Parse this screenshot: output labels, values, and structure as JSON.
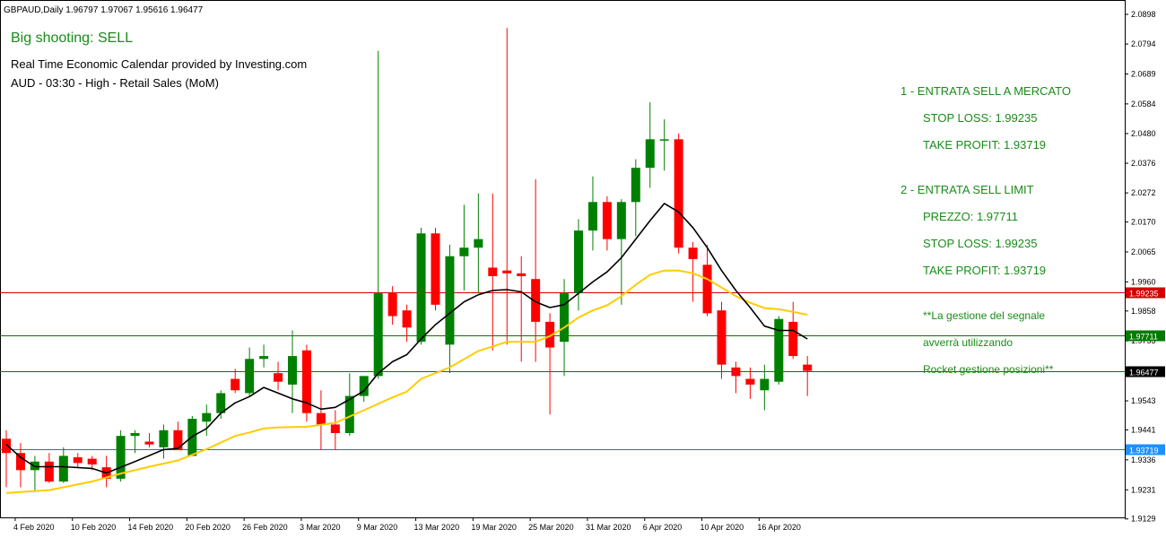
{
  "header": {
    "symbol_info": "GBPAUD,Daily  1.96797 1.97067 1.95616 1.96477",
    "signal_title": "Big shooting: SELL",
    "calendar_line1": "Real Time Economic Calendar provided by Investing.com",
    "calendar_line2": "AUD - 03:30 - High - Retail Sales (MoM)"
  },
  "notes": {
    "entry1": "1 - ENTRATA SELL A MERCATO",
    "sl1": "STOP LOSS: 1.99235",
    "tp1": "TAKE PROFIT: 1.93719",
    "entry2": "2 - ENTRATA SELL LIMIT",
    "price2": "PREZZO: 1.97711",
    "sl2": "STOP LOSS: 1.99235",
    "tp2": "TAKE PROFIT: 1.93719",
    "mgmt1": "**La gestione del segnale",
    "mgmt2": "avverrà utilizzando",
    "mgmt3": "Rocket gestione posizioni**"
  },
  "colors": {
    "bull": "#008000",
    "bear": "#ff0000",
    "fast_ma": "#000000",
    "slow_ma": "#ffcc00",
    "stop_line": "#d40000",
    "entry_line": "#007a00",
    "target_line": "#008b8b",
    "current_label_bg": "#000000",
    "target_label_bg": "#1e90ff"
  },
  "chart_data": {
    "type": "candlestick",
    "symbol": "GBPAUD",
    "timeframe": "Daily",
    "ylim": [
      1.9123,
      2.0917
    ],
    "y_ticks": [
      2.0898,
      2.0794,
      2.0689,
      2.0584,
      2.048,
      2.0376,
      2.0272,
      2.017,
      2.0065,
      1.996,
      1.9858,
      1.9753,
      1.9648,
      1.9543,
      1.9441,
      1.9336,
      1.9231,
      1.9129
    ],
    "x_ticks": [
      {
        "label": "4 Feb 2020",
        "index": 1
      },
      {
        "label": "10 Feb 2020",
        "index": 5
      },
      {
        "label": "14 Feb 2020",
        "index": 9
      },
      {
        "label": "20 Feb 2020",
        "index": 13
      },
      {
        "label": "26 Feb 2020",
        "index": 17
      },
      {
        "label": "3 Mar 2020",
        "index": 21
      },
      {
        "label": "9 Mar 2020",
        "index": 25
      },
      {
        "label": "13 Mar 2020",
        "index": 29
      },
      {
        "label": "19 Mar 2020",
        "index": 33
      },
      {
        "label": "25 Mar 2020",
        "index": 37
      },
      {
        "label": "31 Mar 2020",
        "index": 41
      },
      {
        "label": "6 Apr 2020",
        "index": 45
      },
      {
        "label": "10 Apr 2020",
        "index": 49
      },
      {
        "label": "16 Apr 2020",
        "index": 53
      }
    ],
    "candles": [
      {
        "o": 1.941,
        "h": 1.944,
        "l": 1.924,
        "c": 1.936
      },
      {
        "o": 1.936,
        "h": 1.9395,
        "l": 1.924,
        "c": 1.93
      },
      {
        "o": 1.93,
        "h": 1.935,
        "l": 1.9225,
        "c": 1.933
      },
      {
        "o": 1.933,
        "h": 1.936,
        "l": 1.9255,
        "c": 1.926
      },
      {
        "o": 1.926,
        "h": 1.938,
        "l": 1.9255,
        "c": 1.935
      },
      {
        "o": 1.9345,
        "h": 1.936,
        "l": 1.931,
        "c": 1.9325
      },
      {
        "o": 1.934,
        "h": 1.935,
        "l": 1.93,
        "c": 1.932
      },
      {
        "o": 1.931,
        "h": 1.935,
        "l": 1.924,
        "c": 1.927
      },
      {
        "o": 1.927,
        "h": 1.944,
        "l": 1.926,
        "c": 1.942
      },
      {
        "o": 1.942,
        "h": 1.944,
        "l": 1.936,
        "c": 1.943
      },
      {
        "o": 1.94,
        "h": 1.943,
        "l": 1.938,
        "c": 1.939
      },
      {
        "o": 1.938,
        "h": 1.946,
        "l": 1.934,
        "c": 1.944
      },
      {
        "o": 1.944,
        "h": 1.947,
        "l": 1.937,
        "c": 1.937
      },
      {
        "o": 1.935,
        "h": 1.949,
        "l": 1.935,
        "c": 1.948
      },
      {
        "o": 1.947,
        "h": 1.953,
        "l": 1.942,
        "c": 1.95
      },
      {
        "o": 1.95,
        "h": 1.958,
        "l": 1.948,
        "c": 1.957
      },
      {
        "o": 1.962,
        "h": 1.9655,
        "l": 1.957,
        "c": 1.958
      },
      {
        "o": 1.957,
        "h": 1.973,
        "l": 1.956,
        "c": 1.969
      },
      {
        "o": 1.969,
        "h": 1.974,
        "l": 1.966,
        "c": 1.97
      },
      {
        "o": 1.964,
        "h": 1.968,
        "l": 1.958,
        "c": 1.961
      },
      {
        "o": 1.96,
        "h": 1.979,
        "l": 1.95,
        "c": 1.97
      },
      {
        "o": 1.972,
        "h": 1.974,
        "l": 1.947,
        "c": 1.95
      },
      {
        "o": 1.95,
        "h": 1.958,
        "l": 1.937,
        "c": 1.946
      },
      {
        "o": 1.946,
        "h": 1.951,
        "l": 1.937,
        "c": 1.943
      },
      {
        "o": 1.943,
        "h": 1.964,
        "l": 1.942,
        "c": 1.956
      },
      {
        "o": 1.956,
        "h": 1.963,
        "l": 1.954,
        "c": 1.963
      },
      {
        "o": 1.963,
        "h": 2.077,
        "l": 1.962,
        "c": 1.992
      },
      {
        "o": 1.992,
        "h": 1.9945,
        "l": 1.981,
        "c": 1.984
      },
      {
        "o": 1.986,
        "h": 1.988,
        "l": 1.975,
        "c": 1.98
      },
      {
        "o": 1.975,
        "h": 2.015,
        "l": 1.974,
        "c": 2.013
      },
      {
        "o": 2.013,
        "h": 2.015,
        "l": 1.986,
        "c": 1.988
      },
      {
        "o": 1.974,
        "h": 2.009,
        "l": 1.964,
        "c": 2.005
      },
      {
        "o": 2.005,
        "h": 2.023,
        "l": 1.993,
        "c": 2.008
      },
      {
        "o": 2.008,
        "h": 2.027,
        "l": 1.992,
        "c": 2.011
      },
      {
        "o": 2.001,
        "h": 2.027,
        "l": 1.972,
        "c": 1.998
      },
      {
        "o": 2.0,
        "h": 2.085,
        "l": 1.974,
        "c": 1.999
      },
      {
        "o": 1.999,
        "h": 2.005,
        "l": 1.968,
        "c": 1.998
      },
      {
        "o": 1.997,
        "h": 2.032,
        "l": 1.968,
        "c": 1.982
      },
      {
        "o": 1.982,
        "h": 1.985,
        "l": 1.9495,
        "c": 1.973
      },
      {
        "o": 1.975,
        "h": 1.997,
        "l": 1.963,
        "c": 1.992
      },
      {
        "o": 1.992,
        "h": 2.018,
        "l": 1.986,
        "c": 2.014
      },
      {
        "o": 2.014,
        "h": 2.033,
        "l": 2.007,
        "c": 2.024
      },
      {
        "o": 2.024,
        "h": 2.026,
        "l": 2.007,
        "c": 2.011
      },
      {
        "o": 2.011,
        "h": 2.025,
        "l": 1.988,
        "c": 2.024
      },
      {
        "o": 2.024,
        "h": 2.039,
        "l": 2.012,
        "c": 2.036
      },
      {
        "o": 2.036,
        "h": 2.059,
        "l": 2.029,
        "c": 2.046
      },
      {
        "o": 2.046,
        "h": 2.053,
        "l": 2.035,
        "c": 2.046
      },
      {
        "o": 2.046,
        "h": 2.048,
        "l": 2.006,
        "c": 2.008
      },
      {
        "o": 2.008,
        "h": 2.01,
        "l": 1.989,
        "c": 2.004
      },
      {
        "o": 2.002,
        "h": 2.009,
        "l": 1.984,
        "c": 1.985
      },
      {
        "o": 1.986,
        "h": 1.989,
        "l": 1.962,
        "c": 1.967
      },
      {
        "o": 1.966,
        "h": 1.968,
        "l": 1.957,
        "c": 1.963
      },
      {
        "o": 1.962,
        "h": 1.966,
        "l": 1.955,
        "c": 1.96
      },
      {
        "o": 1.958,
        "h": 1.967,
        "l": 1.951,
        "c": 1.962
      },
      {
        "o": 1.961,
        "h": 1.984,
        "l": 1.96,
        "c": 1.983
      },
      {
        "o": 1.982,
        "h": 1.989,
        "l": 1.969,
        "c": 1.97
      },
      {
        "o": 1.967,
        "h": 1.97,
        "l": 1.956,
        "c": 1.9648
      }
    ],
    "fast_ma": [
      {
        "i": 0,
        "v": 1.939
      },
      {
        "i": 1,
        "v": 1.9345
      },
      {
        "i": 2,
        "v": 1.9312
      },
      {
        "i": 4,
        "v": 1.9312
      },
      {
        "i": 6,
        "v": 1.9306
      },
      {
        "i": 7,
        "v": 1.929
      },
      {
        "i": 9,
        "v": 1.933
      },
      {
        "i": 11,
        "v": 1.9372
      },
      {
        "i": 12,
        "v": 1.9376
      },
      {
        "i": 13,
        "v": 1.9418
      },
      {
        "i": 14,
        "v": 1.9446
      },
      {
        "i": 15,
        "v": 1.95
      },
      {
        "i": 16,
        "v": 1.9536
      },
      {
        "i": 17,
        "v": 1.9558
      },
      {
        "i": 18,
        "v": 1.959
      },
      {
        "i": 19,
        "v": 1.957
      },
      {
        "i": 20,
        "v": 1.955
      },
      {
        "i": 21,
        "v": 1.9536
      },
      {
        "i": 22,
        "v": 1.9514
      },
      {
        "i": 23,
        "v": 1.952
      },
      {
        "i": 24,
        "v": 1.9548
      },
      {
        "i": 25,
        "v": 1.9578
      },
      {
        "i": 26,
        "v": 1.964
      },
      {
        "i": 27,
        "v": 1.968
      },
      {
        "i": 28,
        "v": 1.9705
      },
      {
        "i": 29,
        "v": 1.976
      },
      {
        "i": 30,
        "v": 1.981
      },
      {
        "i": 31,
        "v": 1.985
      },
      {
        "i": 32,
        "v": 1.989
      },
      {
        "i": 33,
        "v": 1.9915
      },
      {
        "i": 34,
        "v": 1.993
      },
      {
        "i": 35,
        "v": 1.9933
      },
      {
        "i": 36,
        "v": 1.9925
      },
      {
        "i": 37,
        "v": 1.989
      },
      {
        "i": 38,
        "v": 1.987
      },
      {
        "i": 39,
        "v": 1.988
      },
      {
        "i": 40,
        "v": 1.992
      },
      {
        "i": 41,
        "v": 1.996
      },
      {
        "i": 42,
        "v": 1.9995
      },
      {
        "i": 43,
        "v": 2.0045
      },
      {
        "i": 44,
        "v": 2.011
      },
      {
        "i": 45,
        "v": 2.0175
      },
      {
        "i": 46,
        "v": 2.0235
      },
      {
        "i": 47,
        "v": 2.0205
      },
      {
        "i": 48,
        "v": 2.015
      },
      {
        "i": 49,
        "v": 2.008
      },
      {
        "i": 50,
        "v": 2.0
      },
      {
        "i": 51,
        "v": 1.993
      },
      {
        "i": 52,
        "v": 1.987
      },
      {
        "i": 53,
        "v": 1.9805
      },
      {
        "i": 54,
        "v": 1.979
      },
      {
        "i": 55,
        "v": 1.979
      },
      {
        "i": 56,
        "v": 1.976
      }
    ],
    "slow_ma": [
      {
        "i": 0,
        "v": 1.922
      },
      {
        "i": 3,
        "v": 1.923
      },
      {
        "i": 6,
        "v": 1.926
      },
      {
        "i": 8,
        "v": 1.9288
      },
      {
        "i": 10,
        "v": 1.9312
      },
      {
        "i": 12,
        "v": 1.9334
      },
      {
        "i": 14,
        "v": 1.9374
      },
      {
        "i": 16,
        "v": 1.942
      },
      {
        "i": 17,
        "v": 1.9432
      },
      {
        "i": 18,
        "v": 1.9446
      },
      {
        "i": 19,
        "v": 1.945
      },
      {
        "i": 21,
        "v": 1.9452
      },
      {
        "i": 23,
        "v": 1.9466
      },
      {
        "i": 25,
        "v": 1.951
      },
      {
        "i": 27,
        "v": 1.9555
      },
      {
        "i": 28,
        "v": 1.9575
      },
      {
        "i": 29,
        "v": 1.962
      },
      {
        "i": 31,
        "v": 1.966
      },
      {
        "i": 33,
        "v": 1.9718
      },
      {
        "i": 35,
        "v": 1.975
      },
      {
        "i": 37,
        "v": 1.975
      },
      {
        "i": 38,
        "v": 1.977
      },
      {
        "i": 39,
        "v": 1.98
      },
      {
        "i": 40,
        "v": 1.9835
      },
      {
        "i": 41,
        "v": 1.986
      },
      {
        "i": 42,
        "v": 1.9878
      },
      {
        "i": 43,
        "v": 1.991
      },
      {
        "i": 44,
        "v": 1.995
      },
      {
        "i": 45,
        "v": 1.9985
      },
      {
        "i": 46,
        "v": 2.0
      },
      {
        "i": 47,
        "v": 2.0
      },
      {
        "i": 48,
        "v": 1.999
      },
      {
        "i": 49,
        "v": 1.997
      },
      {
        "i": 50,
        "v": 1.994
      },
      {
        "i": 51,
        "v": 1.991
      },
      {
        "i": 52,
        "v": 1.9887
      },
      {
        "i": 53,
        "v": 1.9868
      },
      {
        "i": 54,
        "v": 1.9864
      },
      {
        "i": 55,
        "v": 1.9855
      },
      {
        "i": 56,
        "v": 1.9845
      }
    ],
    "levels": [
      {
        "name": "stop-loss",
        "value": 1.99235,
        "label": "1.99235",
        "color_key": "stop_line",
        "label_bg": "#d40000"
      },
      {
        "name": "sell-limit",
        "value": 1.97711,
        "label": "1.97711",
        "color_key": "entry_line",
        "label_bg": "#007a00"
      },
      {
        "name": "current-price",
        "value": 1.96477,
        "label": "1.96477",
        "color_key": "entry_line",
        "label_bg": "#000000"
      },
      {
        "name": "take-profit",
        "value": 1.93719,
        "label": "1.93719",
        "color_key": "target_line",
        "label_bg": "#1e90ff"
      }
    ]
  }
}
